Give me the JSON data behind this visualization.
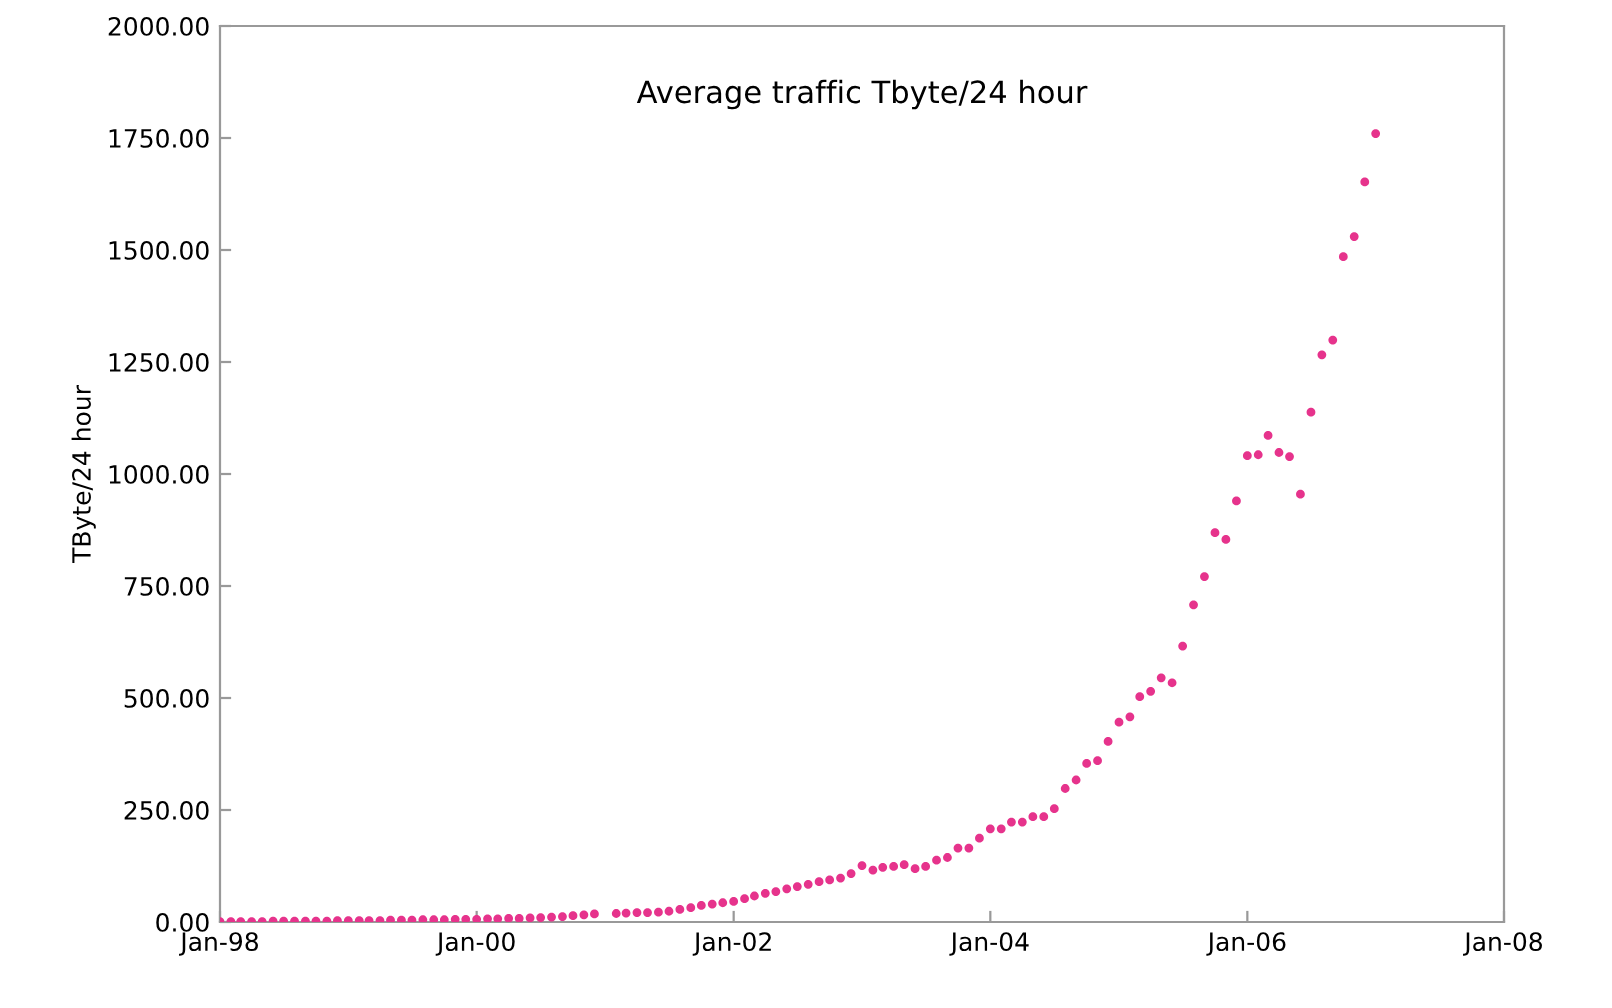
{
  "chart_data": {
    "type": "scatter",
    "title": "Average traffic Tbyte/24 hour",
    "ylabel": "TByte/24 hour",
    "x": [
      "1998-01",
      "1998-02",
      "1998-03",
      "1998-04",
      "1998-05",
      "1998-06",
      "1998-07",
      "1998-08",
      "1998-09",
      "1998-10",
      "1998-11",
      "1998-12",
      "1999-01",
      "1999-02",
      "1999-03",
      "1999-04",
      "1999-05",
      "1999-06",
      "1999-07",
      "1999-08",
      "1999-09",
      "1999-10",
      "1999-11",
      "1999-12",
      "2000-01",
      "2000-02",
      "2000-03",
      "2000-04",
      "2000-05",
      "2000-06",
      "2000-07",
      "2000-08",
      "2000-09",
      "2000-10",
      "2000-11",
      "2000-12",
      "2001-02",
      "2001-03",
      "2001-04",
      "2001-05",
      "2001-06",
      "2001-07",
      "2001-08",
      "2001-09",
      "2001-10",
      "2001-11",
      "2001-12",
      "2002-01",
      "2002-02",
      "2002-03",
      "2002-04",
      "2002-05",
      "2002-06",
      "2002-07",
      "2002-08",
      "2002-09",
      "2002-10",
      "2002-11",
      "2002-12",
      "2003-01",
      "2003-02",
      "2003-03",
      "2003-04",
      "2003-05",
      "2003-06",
      "2003-07",
      "2003-08",
      "2003-09",
      "2003-10",
      "2003-11",
      "2003-12",
      "2004-01",
      "2004-02",
      "2004-03",
      "2004-04",
      "2004-05",
      "2004-06",
      "2004-07",
      "2004-08",
      "2004-09",
      "2004-10",
      "2004-11",
      "2004-12",
      "2005-01",
      "2005-02",
      "2005-03",
      "2005-04",
      "2005-05",
      "2005-06",
      "2005-07",
      "2005-08",
      "2005-09",
      "2005-10",
      "2005-11",
      "2005-12",
      "2006-01",
      "2006-02",
      "2006-03",
      "2006-04",
      "2006-05",
      "2006-06",
      "2006-07",
      "2006-08",
      "2006-09",
      "2006-10",
      "2006-11",
      "2006-12",
      "2007-01"
    ],
    "series": [
      {
        "color": "#e6338c",
        "values": [
          1,
          1,
          1,
          1,
          1,
          2,
          2,
          2,
          2,
          2,
          2,
          3,
          3,
          3,
          3,
          3,
          4,
          4,
          4,
          5,
          5,
          5,
          6,
          6,
          6,
          7,
          7,
          8,
          8,
          9,
          10,
          11,
          12,
          14,
          16,
          18,
          19,
          20,
          21,
          21,
          22,
          24,
          28,
          32,
          37,
          40,
          43,
          46,
          52,
          58,
          64,
          68,
          74,
          79,
          84,
          90,
          94,
          98,
          108,
          126,
          116,
          122,
          124,
          128,
          119,
          124,
          138,
          144,
          165,
          165,
          187,
          208,
          208,
          223,
          223,
          235,
          235,
          253,
          298,
          317,
          354,
          360,
          403,
          446,
          458,
          503,
          515,
          545,
          534,
          616,
          708,
          771,
          869,
          854,
          940,
          1041,
          1043,
          1086,
          1048,
          1039,
          955,
          1138,
          1266,
          1299,
          1485,
          1530,
          1652,
          1760
        ]
      }
    ],
    "marker": "circle",
    "grid": false,
    "xlim": [
      "1998-01",
      "2008-01"
    ],
    "xticks": [
      {
        "value": "1998-01",
        "label": "Jan-98"
      },
      {
        "value": "2000-01",
        "label": "Jan-00"
      },
      {
        "value": "2002-01",
        "label": "Jan-02"
      },
      {
        "value": "2004-01",
        "label": "Jan-04"
      },
      {
        "value": "2006-01",
        "label": "Jan-06"
      },
      {
        "value": "2008-01",
        "label": "Jan-08"
      }
    ],
    "ylim": [
      0,
      2000
    ],
    "yticks": [
      {
        "value": 0,
        "label": "0.00"
      },
      {
        "value": 250,
        "label": "250.00"
      },
      {
        "value": 500,
        "label": "500.00"
      },
      {
        "value": 750,
        "label": "750.00"
      },
      {
        "value": 1000,
        "label": "1000.00"
      },
      {
        "value": 1250,
        "label": "1250.00"
      },
      {
        "value": 1500,
        "label": "1500.00"
      },
      {
        "value": 1750,
        "label": "1750.00"
      },
      {
        "value": 2000,
        "label": "2000.00"
      }
    ]
  }
}
